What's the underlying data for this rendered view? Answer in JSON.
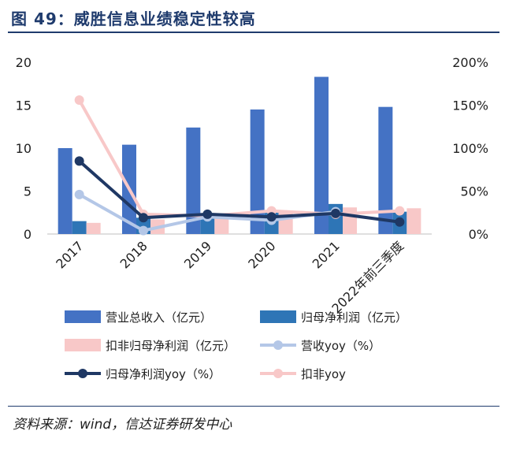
{
  "figure_title": "图 49：威胜信息业绩稳定性较高",
  "source": "资料来源：wind，信达证券研发中心",
  "chart_data": {
    "type": "bar",
    "categories": [
      "2017",
      "2018",
      "2019",
      "2020",
      "2021",
      "2022年前三季度"
    ],
    "y_left": {
      "ticks": [
        "0",
        "5",
        "10",
        "15",
        "20"
      ],
      "range": [
        0,
        20
      ]
    },
    "y_right": {
      "ticks": [
        "0%",
        "50%",
        "100%",
        "150%",
        "200%"
      ],
      "range": [
        0,
        2
      ]
    },
    "bar_series": [
      {
        "name": "营业总收入（亿元）",
        "color": "#4472C4",
        "values": [
          10.0,
          10.4,
          12.4,
          14.5,
          18.3,
          14.8
        ]
      },
      {
        "name": "归母净利润（亿元）",
        "color": "#2E75B6",
        "values": [
          1.5,
          1.9,
          2.3,
          2.7,
          3.5,
          2.6
        ]
      },
      {
        "name": "扣非归母净利润（亿元）",
        "color": "#F8C8C8",
        "values": [
          1.3,
          1.7,
          2.2,
          2.6,
          3.1,
          3.0
        ]
      }
    ],
    "line_series": [
      {
        "name": "营收yoy（%）",
        "color": "#B4C7E7",
        "values": [
          0.46,
          0.04,
          0.2,
          0.16,
          0.26,
          null
        ]
      },
      {
        "name": "归母净利润yoy（%）",
        "color": "#1F3864",
        "values": [
          0.85,
          0.19,
          0.23,
          0.2,
          0.24,
          0.14
        ]
      },
      {
        "name": "扣非yoy",
        "color": "#F8C8C8",
        "values": [
          1.56,
          0.23,
          0.21,
          0.27,
          0.23,
          0.27
        ]
      }
    ],
    "legend_position": "bottom"
  }
}
